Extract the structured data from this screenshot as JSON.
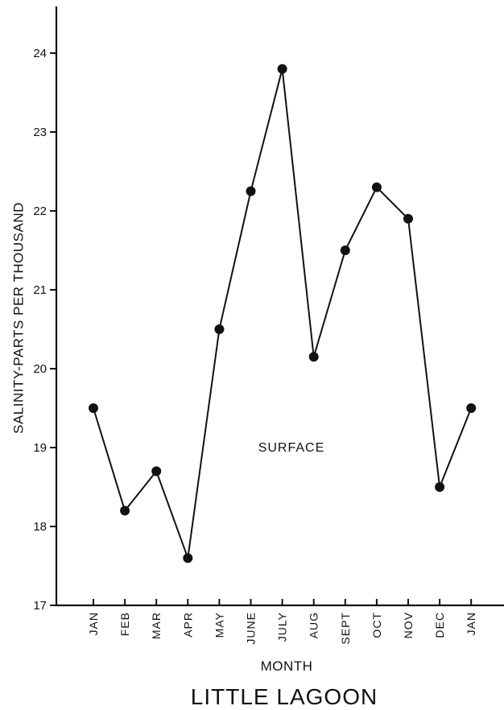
{
  "chart_data": {
    "type": "line",
    "title": "LITTLE LAGOON",
    "xlabel": "MONTH",
    "ylabel": "SALINITY-PARTS PER THOUSAND",
    "categories": [
      "JAN",
      "FEB",
      "MAR",
      "APR",
      "MAY",
      "JUNE",
      "JULY",
      "AUG",
      "SEPT",
      "OCT",
      "NOV",
      "DEC",
      "JAN"
    ],
    "series": [
      {
        "values": [
          19.5,
          18.2,
          18.7,
          17.6,
          20.5,
          22.25,
          23.8,
          20.15,
          21.5,
          22.3,
          21.9,
          18.5,
          19.5
        ]
      }
    ],
    "annotations": [
      {
        "text": "SURFACE"
      }
    ],
    "ylim": [
      17,
      24.5
    ],
    "yticks": [
      17,
      18,
      19,
      20,
      21,
      22,
      23,
      24
    ],
    "grid": false,
    "legend": "none",
    "colors": {
      "line": "#111111",
      "marker": "#111111",
      "axis": "#111111"
    }
  }
}
